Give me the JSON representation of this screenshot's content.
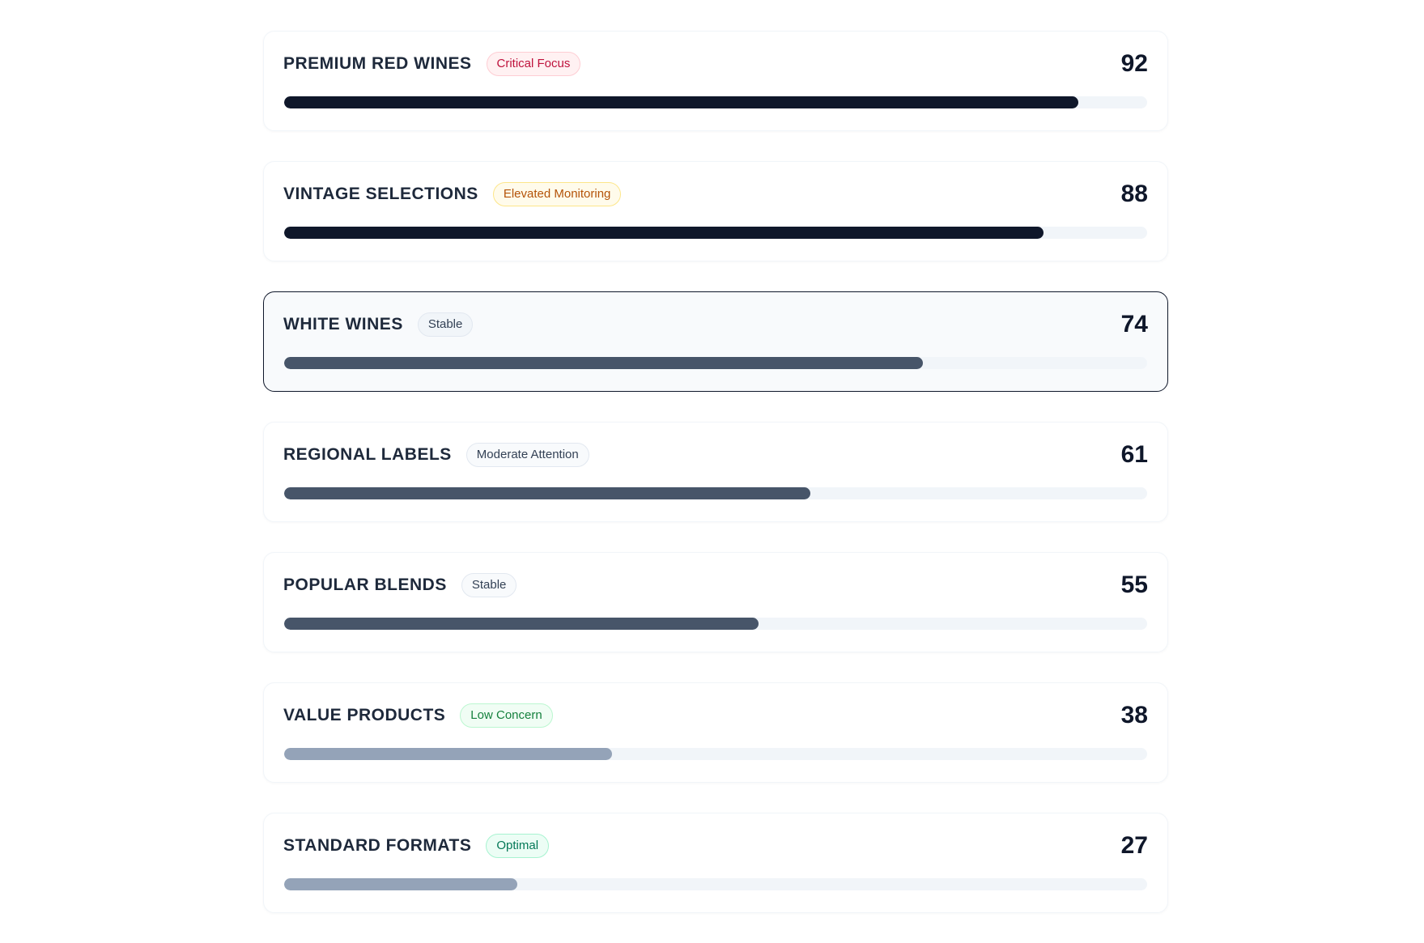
{
  "items": [
    {
      "name": "PREMIUM RED WINES",
      "badge": "Critical Focus",
      "badge_style": {
        "bg": "#fff1f2",
        "border": "#fecdd3",
        "color": "#be123c"
      },
      "score": "92",
      "level": 0.92,
      "bar_color": "#0f172a",
      "selected": false
    },
    {
      "name": "VINTAGE SELECTIONS",
      "badge": "Elevated Monitoring",
      "badge_style": {
        "bg": "#fffbeb",
        "border": "#fde68a",
        "color": "#b45309"
      },
      "score": "88",
      "level": 0.88,
      "bar_color": "#0f172a",
      "selected": false
    },
    {
      "name": "WHITE WINES",
      "badge": "Stable",
      "badge_style": {
        "bg": "#f1f5f9",
        "border": "#e2e8f0",
        "color": "#334155"
      },
      "score": "74",
      "level": 0.74,
      "bar_color": "#475569",
      "selected": true
    },
    {
      "name": "REGIONAL LABELS",
      "badge": "Moderate Attention",
      "badge_style": {
        "bg": "#f8fafc",
        "border": "#e2e8f0",
        "color": "#334155"
      },
      "score": "61",
      "level": 0.61,
      "bar_color": "#475569",
      "selected": false
    },
    {
      "name": "POPULAR BLENDS",
      "badge": "Stable",
      "badge_style": {
        "bg": "#f8fafc",
        "border": "#e2e8f0",
        "color": "#334155"
      },
      "score": "55",
      "level": 0.55,
      "bar_color": "#475569",
      "selected": false
    },
    {
      "name": "VALUE PRODUCTS",
      "badge": "Low Concern",
      "badge_style": {
        "bg": "#f0fdf4",
        "border": "#bbf7d0",
        "color": "#15803d"
      },
      "score": "38",
      "level": 0.38,
      "bar_color": "#94a3b8",
      "selected": false
    },
    {
      "name": "STANDARD FORMATS",
      "badge": "Optimal",
      "badge_style": {
        "bg": "#ecfdf5",
        "border": "#a7f3d0",
        "color": "#047857"
      },
      "score": "27",
      "level": 0.27,
      "bar_color": "#94a3b8",
      "selected": false
    }
  ]
}
